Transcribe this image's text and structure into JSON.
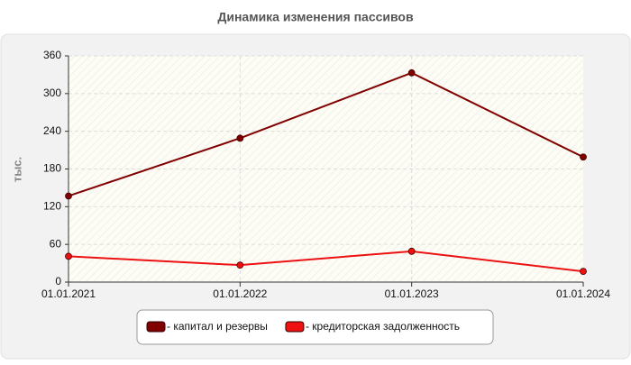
{
  "chart_data": {
    "type": "line",
    "title": "Динамика изменения пассивов",
    "y_label": "тыс.",
    "categories": [
      "01.01.2021",
      "01.01.2022",
      "01.01.2023",
      "01.01.2024"
    ],
    "series": [
      {
        "name": "- капитал и резервы",
        "color": "#800000",
        "values": [
          137,
          229,
          333,
          199
        ]
      },
      {
        "name": "- кредиторская задолженность",
        "color": "#ee1111",
        "values": [
          41,
          27,
          49,
          17
        ]
      }
    ],
    "ylim": [
      0,
      360
    ],
    "yticks": [
      0,
      60,
      120,
      180,
      240,
      300,
      360
    ],
    "grid": true,
    "legend": "bottom"
  }
}
